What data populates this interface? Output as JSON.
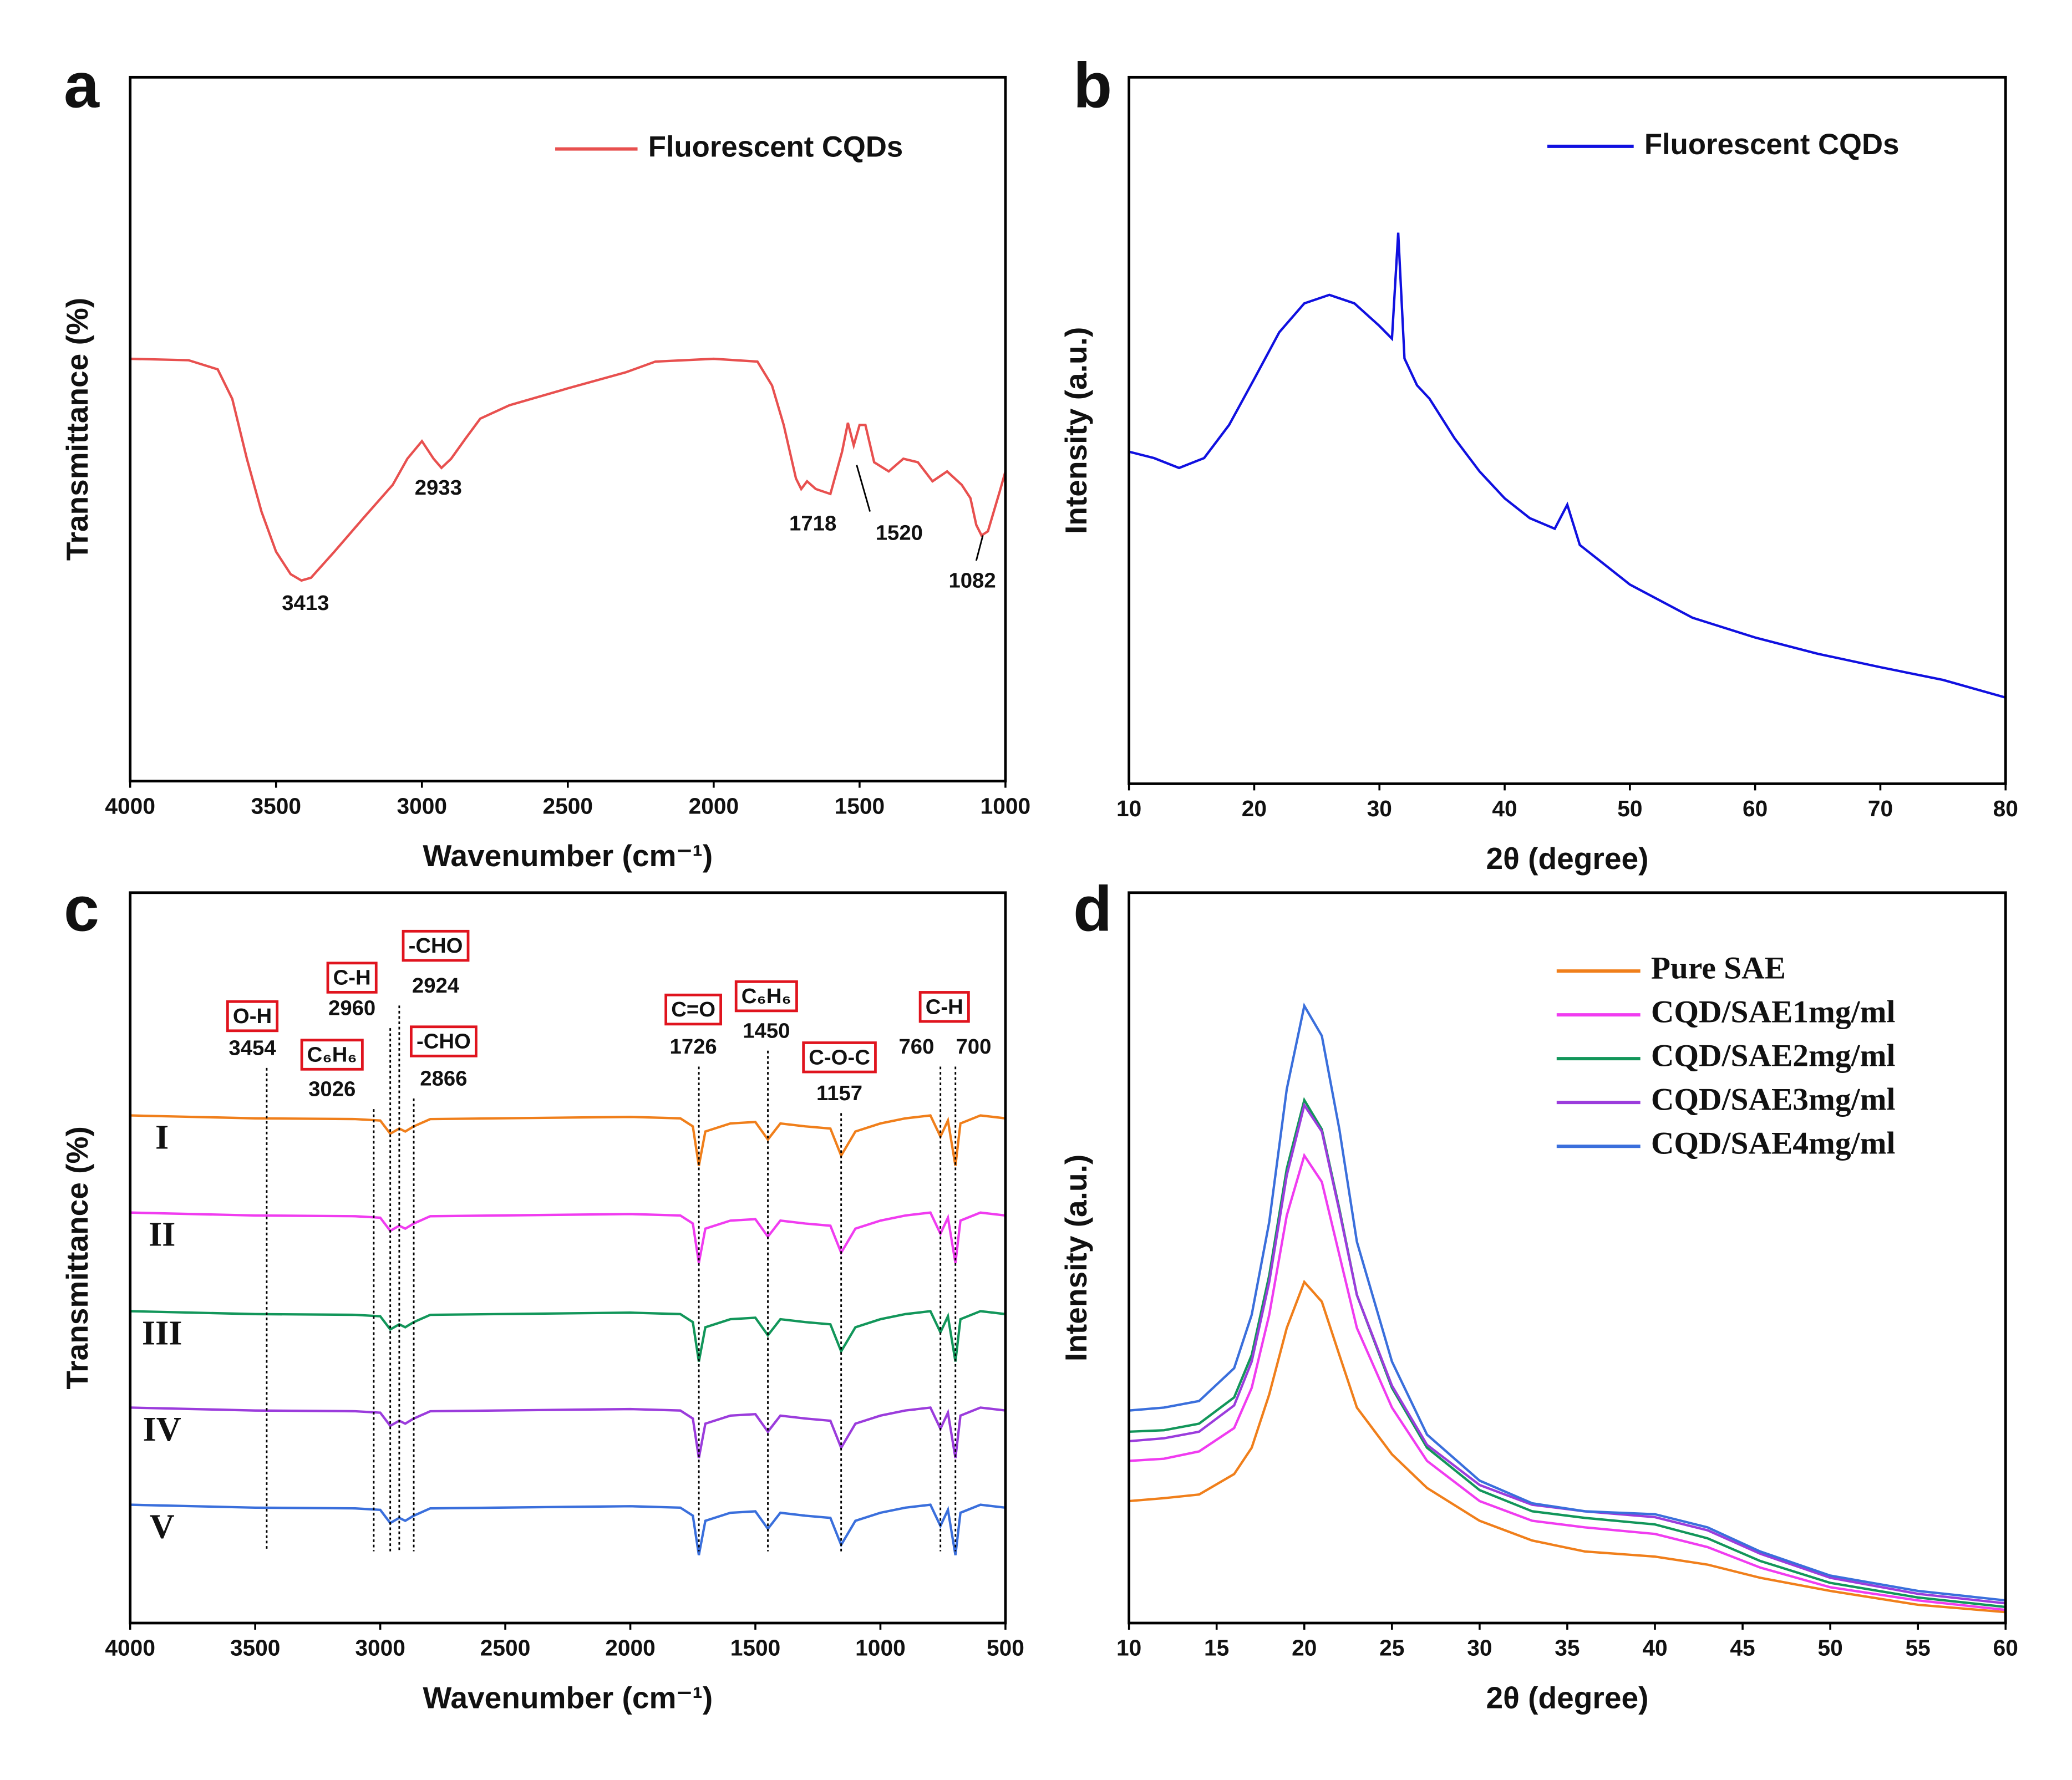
{
  "chart_data": [
    {
      "type": "line",
      "panel": "a",
      "xlabel": "Wavenumber (cm⁻¹)",
      "ylabel": "Transmittance (%)",
      "xlim": [
        4000,
        1000
      ],
      "xticks": [
        4000,
        3500,
        3000,
        2500,
        2000,
        1500,
        1000
      ],
      "ylim": [
        0,
        100
      ],
      "legend": "top-right",
      "x": [
        4000,
        3800,
        3700,
        3650,
        3600,
        3550,
        3500,
        3450,
        3413,
        3380,
        3300,
        3200,
        3100,
        3050,
        3000,
        2960,
        2933,
        2900,
        2850,
        2800,
        2700,
        2500,
        2300,
        2200,
        2000,
        1850,
        1800,
        1760,
        1718,
        1700,
        1680,
        1650,
        1600,
        1560,
        1540,
        1520,
        1500,
        1480,
        1450,
        1400,
        1350,
        1300,
        1250,
        1200,
        1150,
        1120,
        1100,
        1082,
        1060,
        1040,
        1020,
        1000
      ],
      "series": [
        {
          "name": "Fluorescent CQDs",
          "color": "#e8504f",
          "values": [
            60.0,
            59.8,
            58.5,
            54.3,
            45.8,
            38.3,
            32.6,
            29.4,
            28.5,
            28.9,
            32.6,
            37.4,
            42.1,
            45.8,
            48.3,
            45.8,
            44.5,
            45.8,
            48.7,
            51.5,
            53.4,
            55.8,
            58.1,
            59.6,
            60.0,
            59.6,
            56.2,
            50.6,
            43.0,
            41.5,
            42.6,
            41.5,
            40.8,
            46.8,
            50.9,
            47.7,
            50.6,
            50.6,
            45.3,
            44.0,
            45.8,
            45.3,
            42.6,
            44.0,
            42.1,
            40.2,
            36.4,
            34.9,
            35.5,
            38.3,
            41.1,
            44.0
          ]
        }
      ],
      "peaks": [
        3413,
        2933,
        1718,
        1520,
        1082
      ]
    },
    {
      "type": "line",
      "panel": "b",
      "xlabel": "2θ (degree)",
      "ylabel": "Intensity (a.u.)",
      "xlim": [
        10,
        80
      ],
      "xticks": [
        10,
        20,
        30,
        40,
        50,
        60,
        70,
        80
      ],
      "ylim": [
        0,
        100
      ],
      "legend": "top-right",
      "x": [
        10,
        12,
        14,
        16,
        18,
        20,
        22,
        24,
        26,
        28,
        30,
        31,
        31.5,
        32,
        33,
        34,
        36,
        38,
        40,
        42,
        44,
        45,
        46,
        48,
        50,
        55,
        60,
        65,
        70,
        75,
        80
      ],
      "series": [
        {
          "name": "Fluorescent CQDs",
          "color": "#1010e0",
          "values": [
            47.0,
            46.1,
            44.7,
            46.1,
            50.8,
            57.3,
            63.9,
            68.0,
            69.2,
            68.0,
            64.8,
            63.0,
            78.0,
            60.2,
            56.4,
            54.5,
            48.9,
            44.2,
            40.4,
            37.6,
            36.1,
            39.5,
            33.8,
            31.0,
            28.2,
            23.5,
            20.7,
            18.4,
            16.5,
            14.7,
            12.2
          ]
        }
      ]
    },
    {
      "type": "line",
      "panel": "c",
      "xlabel": "Wavenumber (cm⁻¹)",
      "ylabel": "Transmittance (%)",
      "xlim": [
        4000,
        500
      ],
      "xticks": [
        4000,
        3500,
        3000,
        2500,
        2000,
        1500,
        1000,
        500
      ],
      "ylim": [
        0,
        100
      ],
      "x": [
        4000,
        3500,
        3100,
        3000,
        2960,
        2924,
        2900,
        2866,
        2800,
        2000,
        1800,
        1750,
        1726,
        1700,
        1600,
        1500,
        1450,
        1400,
        1300,
        1200,
        1157,
        1100,
        1000,
        900,
        800,
        760,
        730,
        700,
        680,
        600,
        500
      ],
      "series": [
        {
          "name": "I",
          "color": "#f07f1b",
          "values": [
            69.5,
            69.1,
            69.0,
            68.8,
            67.0,
            67.7,
            67.3,
            68.0,
            69.0,
            69.3,
            69.1,
            68.0,
            62.6,
            67.3,
            68.4,
            68.6,
            66.2,
            68.4,
            68.0,
            67.7,
            64.0,
            67.3,
            68.4,
            69.1,
            69.5,
            66.6,
            68.8,
            62.6,
            68.4,
            69.5,
            69.1
          ]
        },
        {
          "name": "II",
          "color": "#f03cf0",
          "values": [
            56.2,
            55.8,
            55.7,
            55.5,
            53.7,
            54.4,
            54.0,
            54.7,
            55.7,
            56.0,
            55.8,
            54.7,
            49.3,
            54.0,
            55.1,
            55.3,
            52.9,
            55.1,
            54.7,
            54.4,
            50.7,
            54.0,
            55.1,
            55.8,
            56.2,
            53.3,
            55.5,
            49.3,
            55.1,
            56.2,
            55.8
          ]
        },
        {
          "name": "III",
          "color": "#12965a",
          "values": [
            42.7,
            42.3,
            42.2,
            42.0,
            40.2,
            40.9,
            40.5,
            41.2,
            42.2,
            42.5,
            42.3,
            41.2,
            35.8,
            40.5,
            41.6,
            41.8,
            39.4,
            41.6,
            41.2,
            40.9,
            37.2,
            40.5,
            41.6,
            42.3,
            42.7,
            39.8,
            42.0,
            35.8,
            41.6,
            42.7,
            42.3
          ]
        },
        {
          "name": "IV",
          "color": "#9b3cdc",
          "values": [
            29.5,
            29.1,
            29.0,
            28.8,
            27.0,
            27.7,
            27.3,
            28.0,
            29.0,
            29.3,
            29.1,
            28.0,
            22.6,
            27.3,
            28.4,
            28.6,
            26.2,
            28.4,
            28.0,
            27.7,
            24.0,
            27.3,
            28.4,
            29.1,
            29.5,
            26.6,
            28.8,
            22.6,
            28.4,
            29.5,
            29.1
          ]
        },
        {
          "name": "V",
          "color": "#3a6fdc",
          "values": [
            16.2,
            15.8,
            15.7,
            15.5,
            13.7,
            14.4,
            14.0,
            14.7,
            15.7,
            16.0,
            15.8,
            14.7,
            9.3,
            14.0,
            15.1,
            15.3,
            12.9,
            15.1,
            14.7,
            14.4,
            10.7,
            14.0,
            15.1,
            15.8,
            16.2,
            13.3,
            15.5,
            9.3,
            15.1,
            16.2,
            15.8
          ]
        }
      ],
      "peak_labels": [
        {
          "text": "O-H",
          "peaks": [
            3454
          ]
        },
        {
          "text": "C₆H₆",
          "peaks": [
            3026
          ]
        },
        {
          "text": "C-H",
          "peaks": [
            2960
          ]
        },
        {
          "text": "-CHO",
          "peaks": [
            2924
          ]
        },
        {
          "text": "-CHO",
          "peaks": [
            2866
          ]
        },
        {
          "text": "C=O",
          "peaks": [
            1726
          ]
        },
        {
          "text": "C₆H₆",
          "peaks": [
            1450
          ]
        },
        {
          "text": "C-O-C",
          "peaks": [
            1157
          ]
        },
        {
          "text": "C-H",
          "peaks": [
            760,
            700
          ]
        }
      ]
    },
    {
      "type": "line",
      "panel": "d",
      "xlabel": "2θ (degree)",
      "ylabel": "Intensity (a.u.)",
      "xlim": [
        10,
        60
      ],
      "xticks": [
        10,
        15,
        20,
        25,
        30,
        35,
        40,
        45,
        50,
        55,
        60
      ],
      "ylim": [
        0,
        100
      ],
      "legend": "top-right",
      "x": [
        10,
        12,
        14,
        16,
        17,
        18,
        19,
        20,
        21,
        22,
        23,
        25,
        27,
        30,
        33,
        36,
        40,
        43,
        46,
        50,
        55,
        60
      ],
      "series": [
        {
          "name": "Pure SAE",
          "color": "#f07f1b",
          "values": [
            16.7,
            17.1,
            17.6,
            20.4,
            24.0,
            31.3,
            40.4,
            46.7,
            44.0,
            36.7,
            29.5,
            23.1,
            18.5,
            14.0,
            11.3,
            9.8,
            9.1,
            8.0,
            6.2,
            4.4,
            2.5,
            1.5
          ]
        },
        {
          "name": "CQD/SAE1mg/ml",
          "color": "#f03cf0",
          "values": [
            22.2,
            22.5,
            23.5,
            26.7,
            32.2,
            42.2,
            55.8,
            64.0,
            60.4,
            50.4,
            40.4,
            29.5,
            22.2,
            16.7,
            14.0,
            13.1,
            12.2,
            10.4,
            7.6,
            4.9,
            3.1,
            1.8
          ]
        },
        {
          "name": "CQD/SAE2mg/ml",
          "color": "#12965a",
          "values": [
            26.2,
            26.4,
            27.3,
            30.9,
            36.7,
            47.6,
            62.2,
            71.6,
            67.6,
            56.7,
            44.9,
            32.2,
            24.0,
            18.2,
            15.3,
            14.4,
            13.5,
            11.6,
            8.5,
            5.5,
            3.5,
            2.2
          ]
        },
        {
          "name": "CQD/SAE3mg/ml",
          "color": "#9b3cdc",
          "values": [
            24.9,
            25.3,
            26.2,
            29.8,
            35.8,
            46.7,
            61.3,
            70.9,
            67.3,
            56.4,
            44.9,
            32.5,
            24.4,
            18.9,
            16.2,
            15.3,
            14.5,
            12.7,
            9.5,
            6.2,
            4.0,
            2.7
          ]
        },
        {
          "name": "CQD/SAE4mg/ml",
          "color": "#3a6fdc",
          "values": [
            29.1,
            29.5,
            30.4,
            34.9,
            42.2,
            54.9,
            73.1,
            84.5,
            80.4,
            67.6,
            52.2,
            35.8,
            25.8,
            19.5,
            16.4,
            15.3,
            14.9,
            13.1,
            9.8,
            6.5,
            4.4,
            3.1
          ]
        }
      ]
    }
  ]
}
